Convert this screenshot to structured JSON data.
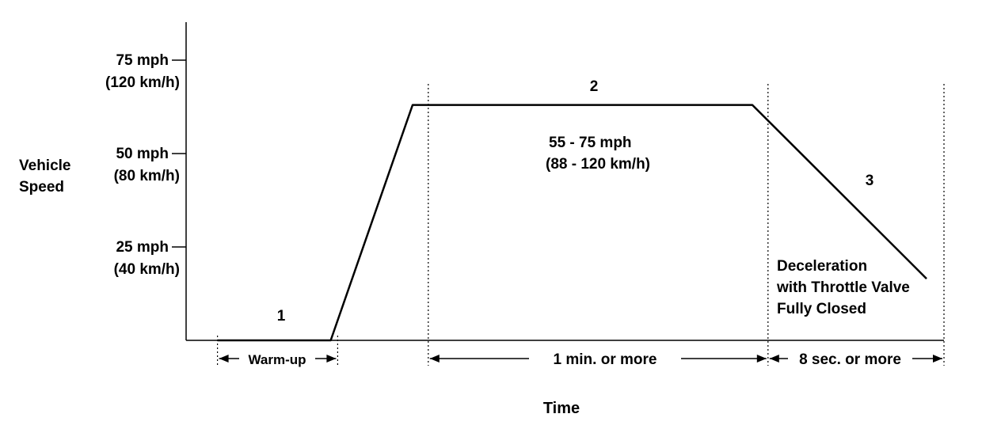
{
  "chart_data": {
    "type": "line",
    "title": "",
    "xlabel": "Time",
    "ylabel": [
      "Vehicle",
      "Speed"
    ],
    "yticks": [
      {
        "value": 75,
        "label": "75 mph",
        "sublabel": "(120 km/h)"
      },
      {
        "value": 50,
        "label": "50 mph",
        "sublabel": "(80 km/h)"
      },
      {
        "value": 25,
        "label": "25 mph",
        "sublabel": "(40 km/h)"
      }
    ],
    "ylim": [
      0,
      85
    ],
    "series": [
      {
        "x": [
          0.18,
          0.83,
          1.3,
          3.25,
          4.25
        ],
        "y": [
          0,
          0,
          63,
          63,
          16.5
        ]
      }
    ],
    "phases": [
      {
        "number": "1",
        "segment": "Warm-up"
      },
      {
        "number": "2",
        "segment": "1 min. or  more",
        "note": [
          "55 - 75 mph",
          "(88 - 120 km/h)"
        ]
      },
      {
        "number": "3",
        "segment": "8 sec. or  more",
        "note": [
          "Deceleration",
          "with Throttle Valve",
          "Fully Closed"
        ]
      }
    ],
    "grid": false,
    "legend": "none"
  }
}
